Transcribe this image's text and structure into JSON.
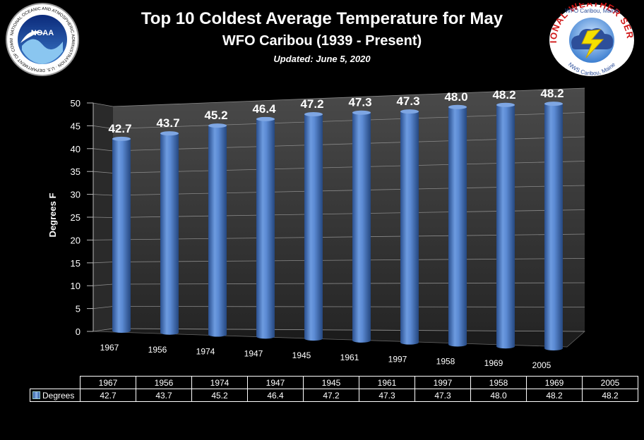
{
  "header": {
    "title": "Top 10 Coldest Average Temperature for May",
    "subtitle": "WFO Caribou (1939 - Present)",
    "updated": "Updated: June 5, 2020"
  },
  "logos": {
    "noaa": {
      "center_text": "NOAA",
      "ring_text": "NATIONAL OCEANIC AND ATMOSPHERIC ADMINISTRATION · U.S. DEPARTMENT OF COMMERCE"
    },
    "nws": {
      "ring_top": "NATIONAL WEATHER SERVICE",
      "ring_sub": "WFO Caribou, Maine",
      "ring_bottom": "NWS Caribou, Maine"
    }
  },
  "chart_data": {
    "type": "bar",
    "categories": [
      "1967",
      "1956",
      "1974",
      "1947",
      "1945",
      "1961",
      "1997",
      "1958",
      "1969",
      "2005"
    ],
    "series": [
      {
        "name": "Degrees",
        "values": [
          42.7,
          43.7,
          45.2,
          46.4,
          47.2,
          47.3,
          47.3,
          48.0,
          48.2,
          48.2
        ]
      }
    ],
    "value_labels": [
      "42.7",
      "43.7",
      "45.2",
      "46.4",
      "47.2",
      "47.3",
      "47.3",
      "48.0",
      "48.2",
      "48.2"
    ],
    "ylabel": "Degrees F",
    "ylim": [
      0,
      50
    ],
    "yticks": [
      "0",
      "5",
      "10",
      "15",
      "20",
      "25",
      "30",
      "35",
      "40",
      "45",
      "50"
    ],
    "grid": true,
    "style": "3d-cylinder",
    "colors": {
      "bar": "#4f81bd",
      "wall": "#3a3a3a"
    }
  },
  "data_table": {
    "series_label": "Degrees",
    "values": [
      "42.7",
      "43.7",
      "45.2",
      "46.4",
      "47.2",
      "47.3",
      "47.3",
      "48.0",
      "48.2",
      "48.2"
    ]
  }
}
